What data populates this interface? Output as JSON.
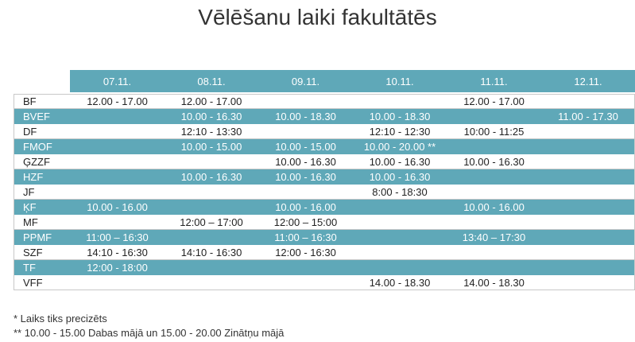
{
  "header": {
    "title": "Vēlēšanu laiki fakultātēs"
  },
  "table": {
    "columns": [
      "07.11.",
      "08.11.",
      "09.11.",
      "10.11.",
      "11.11.",
      "12.11."
    ],
    "rows": [
      {
        "label": "BF",
        "cells": [
          "12.00 - 17.00",
          "12.00 - 17.00",
          null,
          null,
          "12.00 - 17.00",
          null
        ]
      },
      {
        "label": "BVEF",
        "cells": [
          null,
          "10.00 - 16.30",
          "10.00 - 18.30",
          "10.00 - 18.30",
          null,
          "11.00 - 17.30"
        ]
      },
      {
        "label": "DF",
        "cells": [
          null,
          "12:10 - 13:30",
          null,
          "12:10 - 12:30",
          "10:00 - 11:25",
          null
        ]
      },
      {
        "label": "FMOF",
        "cells": [
          null,
          "10.00 - 15.00",
          "10.00 - 15.00",
          "10.00 - 20.00 **",
          null,
          null
        ]
      },
      {
        "label": "ĢZZF",
        "cells": [
          null,
          null,
          "10.00 - 16.30",
          "10.00 - 16.30",
          "10.00 - 16.30",
          null
        ]
      },
      {
        "label": "HZF",
        "cells": [
          null,
          "10.00 - 16.30",
          "10.00 - 16.30",
          "10.00 - 16.30",
          null,
          null
        ]
      },
      {
        "label": "JF",
        "cells": [
          null,
          null,
          null,
          "8:00 - 18:30",
          null,
          null
        ]
      },
      {
        "label": "ĶF",
        "cells": [
          "10.00 - 16.00",
          null,
          "10.00 - 16.00",
          null,
          "10.00 - 16.00",
          null
        ]
      },
      {
        "label": "MF",
        "cells": [
          null,
          "12:00 – 17:00",
          "12:00 – 15:00",
          null,
          null,
          null
        ]
      },
      {
        "label": "PPMF",
        "cells": [
          "11:00 – 16:30",
          null,
          "11:00 – 16:30",
          null,
          "13:40 – 17:30",
          null
        ]
      },
      {
        "label": "SZF",
        "cells": [
          "14:10 - 16:30",
          "14:10 - 16:30",
          "12:00 - 16:30",
          null,
          null,
          null
        ]
      },
      {
        "label": "TF",
        "cells": [
          "12:00 - 18:00",
          null,
          null,
          null,
          null,
          null
        ]
      },
      {
        "label": "VFF",
        "cells": [
          null,
          null,
          null,
          "14.00 - 18.30",
          "14.00 - 18.30",
          null
        ]
      }
    ]
  },
  "footnotes": [
    "* Laiks tiks precizēts",
    "** 10.00 - 15.00 Dabas mājā un 15.00 - 20.00 Zinātņu mājā"
  ]
}
